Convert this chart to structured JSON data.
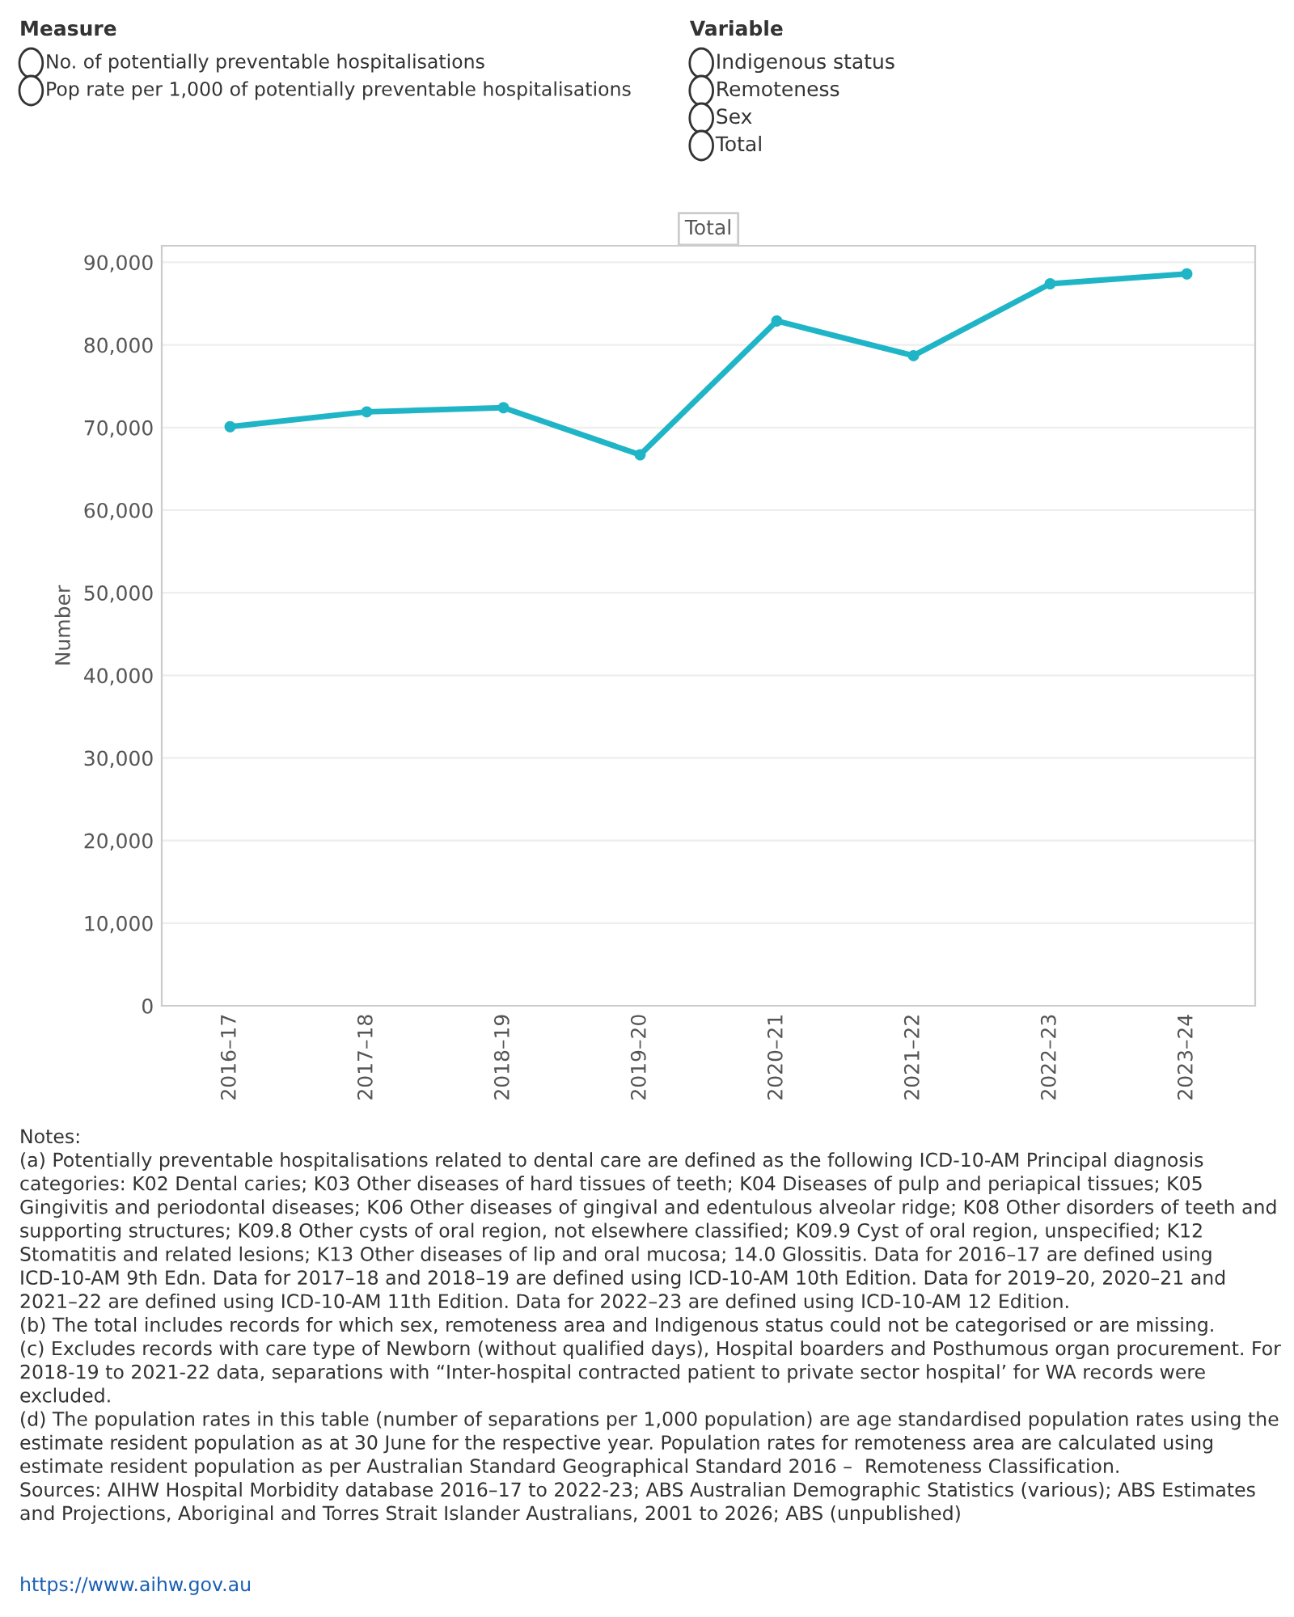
{
  "chart_data": {
    "type": "line",
    "title": "Total",
    "ylabel": "Number",
    "categories": [
      "2016–17",
      "2017–18",
      "2018–19",
      "2019–20",
      "2020–21",
      "2021–22",
      "2022–23",
      "2023–24"
    ],
    "series": [
      {
        "color": "#1fb5c6",
        "values": [
          70100,
          71900,
          72400,
          66700,
          82900,
          78700,
          87400,
          88600
        ]
      }
    ],
    "ylim": [
      0,
      92000
    ],
    "yticks": [
      0,
      {
        "value": 10000,
        "label": "10,000"
      },
      {
        "value": 20000,
        "label": "20,000"
      },
      {
        "value": 30000,
        "label": "30,000"
      },
      {
        "value": 40000,
        "label": "40,000"
      },
      {
        "value": 50000,
        "label": "50,000"
      },
      {
        "value": 60000,
        "label": "60,000"
      },
      {
        "value": 70000,
        "label": "70,000"
      },
      {
        "value": 80000,
        "label": "80,000"
      },
      {
        "value": 90000,
        "label": "90,000"
      }
    ],
    "grid": "y",
    "marker": "circle",
    "line_style": "solid",
    "annotations": [
      "Measure",
      "No. of potentially preventable hospitalisations",
      "Pop rate per 1,000 of potentially preventable hospitalisations",
      "Variable",
      "Indigenous status",
      "Remoteness",
      "Sex",
      "Total",
      "Notes:\n(a) Potentially preventable hospitalisations related to dental care are defined as the following ICD-10-AM Principal diagnosis categories: K02 Dental caries; K03 Other diseases of hard tissues of teeth; K04 Diseases of pulp and periapical tissues; K05 Gingivitis and periodontal diseases; K06 Other diseases of gingival and edentulous alveolar ridge; K08 Other disorders of teeth and supporting structures; K09.8 Other cysts of oral region, not elsewhere classified; K09.9 Cyst of oral region, unspecified; K12 Stomatitis and related lesions; K13 Other diseases of lip and oral mucosa; 14.0 Glossitis. Data for 2016–17 are defined using ICD-10-AM 9th Edn. Data for 2017–18 and 2018–19 are defined using ICD-10-AM 10th Edition. Data for 2019–20, 2020–21 and 2021–22 are defined using ICD-10-AM 11th Edition. Data for 2022–23 are defined using ICD-10-AM 12 Edition.\n(b) The total includes records for which sex, remoteness area and Indigenous status could not be categorised or are missing.\n(c) Excludes records with care type of Newborn (without qualified days), Hospital boarders and Posthumous organ procurement. For 2018-19 to 2021-22 data, separations with “Inter-hospital contracted patient to private sector hospital’ for WA records were excluded.\n(d) The population rates in this table (number of separations per 1,000 population) are age standardised population rates using the estimate resident population as at 30 June for the respective year. Population rates for remoteness area are calculated using estimate resident population as per Australian Standard Geographical Standard 2016 –  Remoteness Classification.\nSources: AIHW Hospital Morbidity database 2016–17 to 2022-23; ABS Australian Demographic Statistics (various); ABS Estimates and Projections, Aboriginal and Torres Strait Islander Australians, 2001 to 2026; ABS (unpublished)",
      "https://www.aihw.gov.au"
    ]
  }
}
